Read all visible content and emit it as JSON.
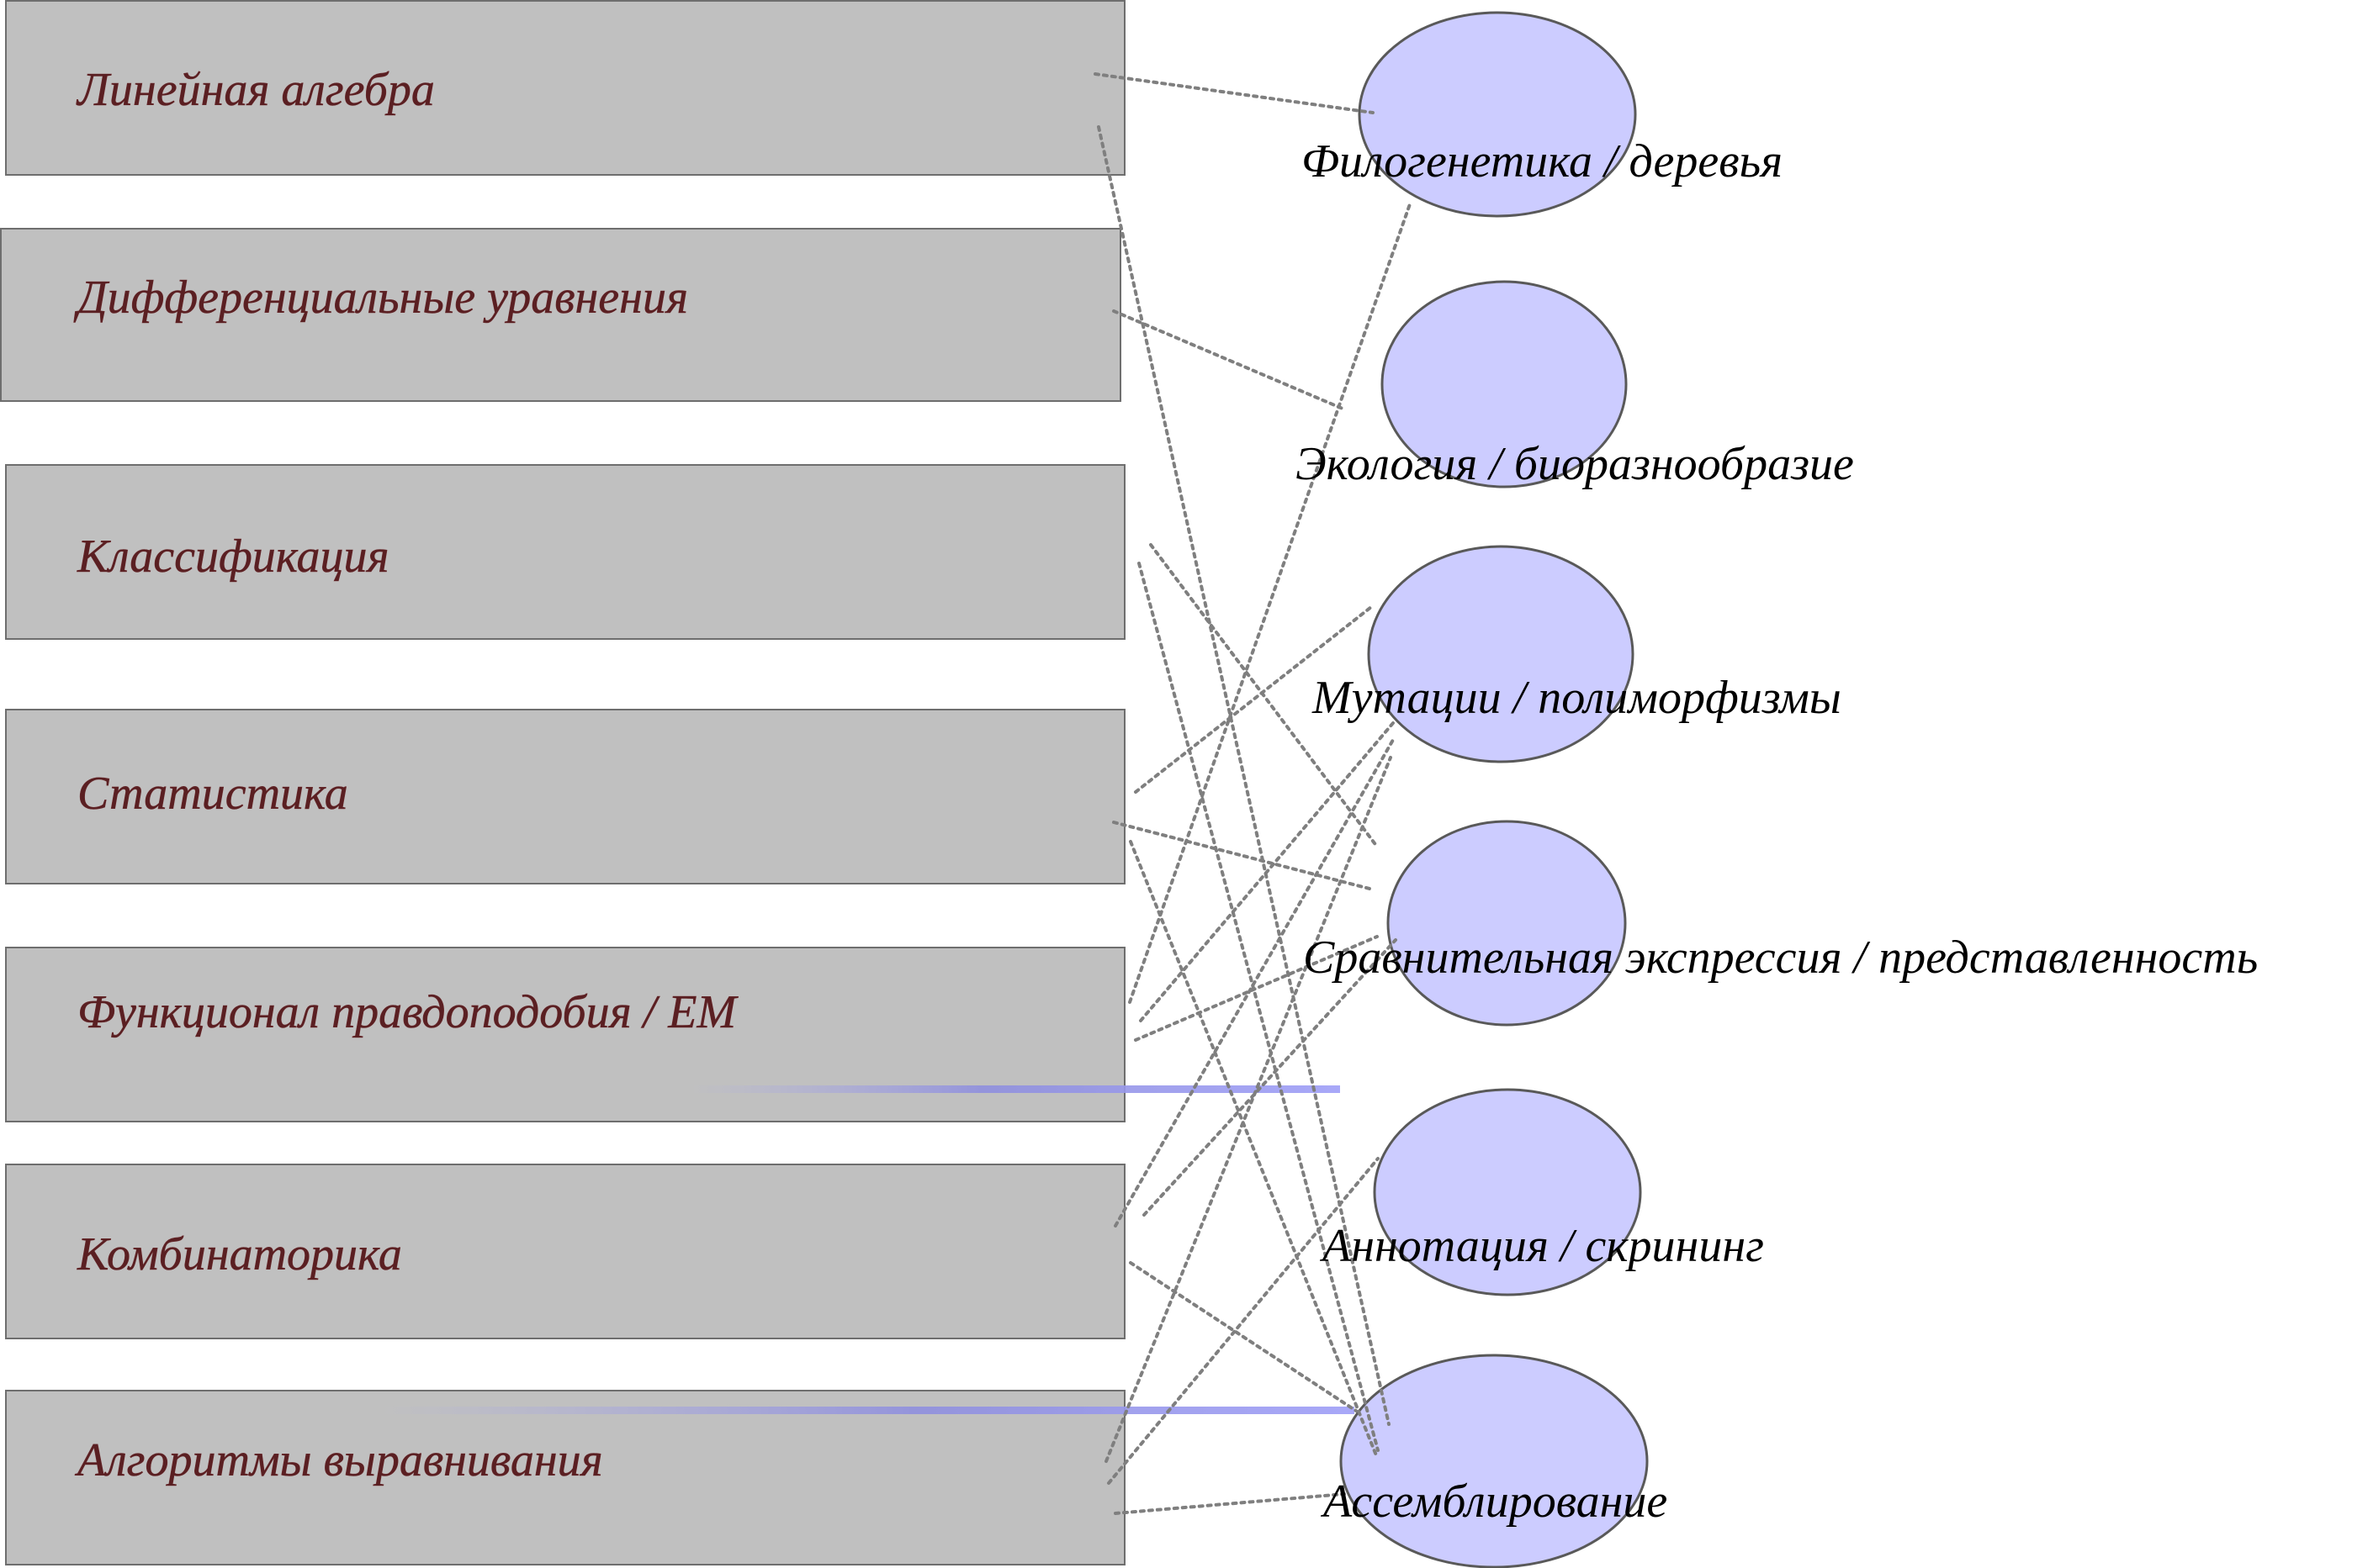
{
  "colors": {
    "box_fill": "#c0c0c0",
    "box_stroke": "#6e6e6e",
    "box_text": "#5a1f22",
    "ellipse_fill": "#ccccff",
    "ellipse_stroke": "#595959",
    "connector": "#7f7f7f",
    "highlight": "#a8a8f0"
  },
  "methods": [
    {
      "id": "linear-algebra",
      "label": "Линейная алгебра"
    },
    {
      "id": "differential-equations",
      "label": "Дифференциальные уравнения"
    },
    {
      "id": "classification",
      "label": "Классификация"
    },
    {
      "id": "statistics",
      "label": "Статистика"
    },
    {
      "id": "likelihood-em",
      "label": "Функционал правдоподобия / EM"
    },
    {
      "id": "combinatorics",
      "label": "Комбинаторика"
    },
    {
      "id": "alignment-algorithms",
      "label": "Алгоритмы выравнивания"
    }
  ],
  "topics": [
    {
      "id": "phylogenetics",
      "label": "Филогенетика / деревья"
    },
    {
      "id": "ecology",
      "label": "Экология / биоразнообразие"
    },
    {
      "id": "mutations",
      "label": "Мутации / полиморфизмы"
    },
    {
      "id": "comparative-expression",
      "label": "Сравнительная экспрессия / представленность"
    },
    {
      "id": "annotation",
      "label": "Аннотация / скрининг"
    },
    {
      "id": "assembly",
      "label": "Ассемблирование"
    }
  ],
  "connections": [
    {
      "from": "linear-algebra",
      "to": "phylogenetics"
    },
    {
      "from": "linear-algebra",
      "to": "assembly"
    },
    {
      "from": "differential-equations",
      "to": "ecology"
    },
    {
      "from": "classification",
      "to": "comparative-expression"
    },
    {
      "from": "classification",
      "to": "assembly"
    },
    {
      "from": "statistics",
      "to": "mutations"
    },
    {
      "from": "statistics",
      "to": "comparative-expression"
    },
    {
      "from": "statistics",
      "to": "assembly"
    },
    {
      "from": "likelihood-em",
      "to": "phylogenetics"
    },
    {
      "from": "likelihood-em",
      "to": "mutations"
    },
    {
      "from": "likelihood-em",
      "to": "comparative-expression"
    },
    {
      "from": "combinatorics",
      "to": "mutations"
    },
    {
      "from": "combinatorics",
      "to": "comparative-expression"
    },
    {
      "from": "combinatorics",
      "to": "assembly"
    },
    {
      "from": "alignment-algorithms",
      "to": "mutations"
    },
    {
      "from": "alignment-algorithms",
      "to": "annotation"
    },
    {
      "from": "alignment-algorithms",
      "to": "assembly"
    }
  ],
  "highlights": [
    {
      "from": "likelihood-em",
      "to": "comparative-expression"
    },
    {
      "from": "alignment-algorithms",
      "to": "assembly"
    }
  ]
}
